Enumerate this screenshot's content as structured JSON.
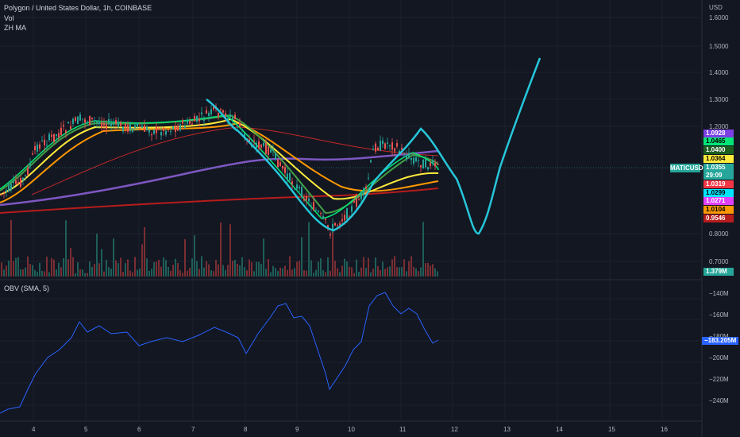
{
  "header": {
    "title": "Polygon / United States Dollar, 1h, COINBASE",
    "indicator_vol": "Vol",
    "indicator_ma": "ZH MA",
    "currency": "USD"
  },
  "price_axis": {
    "ticks": [
      "1.6000",
      "1.5000",
      "1.4000",
      "1.3000",
      "1.2000",
      "0.8000",
      "0.7000"
    ]
  },
  "price_badges": [
    {
      "text": "1.0928",
      "bg": "#7b3fe4",
      "fg": "#ffffff"
    },
    {
      "text": "1.0465",
      "bg": "#00e676",
      "fg": "#000000"
    },
    {
      "text": "1.0400",
      "bg": "#1b5e20",
      "fg": "#ffffff"
    },
    {
      "text": "1.0364",
      "bg": "#ffeb3b",
      "fg": "#000000"
    },
    {
      "text": "1.0355",
      "bg": "#26a69a",
      "fg": "#ffffff"
    },
    {
      "text": "29:09",
      "bg": "#26a69a",
      "fg": "#ffffff"
    },
    {
      "text": "1.0319",
      "bg": "#f23645",
      "fg": "#ffffff"
    },
    {
      "text": "1.0299",
      "bg": "#00e5ff",
      "fg": "#000000"
    },
    {
      "text": "1.0271",
      "bg": "#e040fb",
      "fg": "#ffffff"
    },
    {
      "text": "1.0104",
      "bg": "#ff9800",
      "fg": "#000000"
    },
    {
      "text": "0.9546",
      "bg": "#b71c1c",
      "fg": "#ffffff"
    }
  ],
  "symbol_tag": "MATICUSD",
  "volume_badge": {
    "text": "1.379M",
    "bg": "#26a69a"
  },
  "obv": {
    "label": "OBV (SMA, 5)",
    "ticks": [
      "−140M",
      "−160M",
      "−180M",
      "−200M",
      "−220M",
      "−240M"
    ],
    "current": "−183.205M",
    "current_bg": "#2962ff"
  },
  "time_axis": {
    "labels": [
      "4",
      "5",
      "6",
      "7",
      "8",
      "9",
      "10",
      "11",
      "12",
      "13",
      "14",
      "15",
      "16"
    ]
  },
  "colors": {
    "bg": "#131722",
    "up": "#26a69a",
    "down": "#ef5350",
    "projection": "#26c6da",
    "obv_line": "#2962ff"
  }
}
